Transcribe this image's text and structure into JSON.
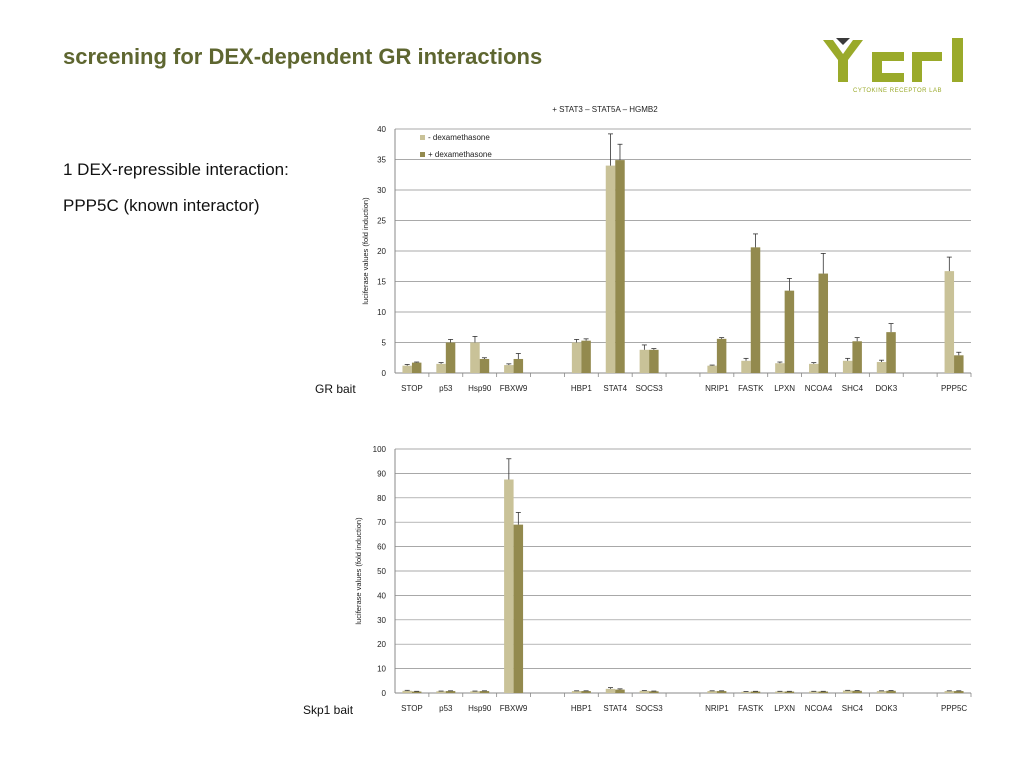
{
  "slide": {
    "title": "screening for DEX-dependent GR interactions",
    "bullet_1": "1 DEX-repressible interaction:",
    "bullet_2": "PPP5C (known interactor)",
    "bait_gr": "GR bait",
    "bait_skp1": "Skp1 bait"
  },
  "logo": {
    "letters": "ycrl",
    "subtitle": "CYTOKINE RECEPTOR LAB",
    "color": "#9aaa2a"
  },
  "colors": {
    "minus_dex": "#c9c298",
    "plus_dex": "#938a4e",
    "grid": "#8c8c8c"
  },
  "chart_data": [
    {
      "type": "bar",
      "title": "+ STAT3 – STAT5A – HGMB2",
      "ylabel": "luciferase values (fold induction)",
      "ylim": [
        0,
        40
      ],
      "yticks": [
        0,
        5,
        10,
        15,
        20,
        25,
        30,
        35,
        40
      ],
      "grid": true,
      "legend": "top-left",
      "categories": [
        "STOP",
        "p53",
        "Hsp90",
        "FBXW9",
        "",
        "HBP1",
        "STAT4",
        "SOCS3",
        "",
        "NRIP1",
        "FASTK",
        "LPXN",
        "NCOA4",
        "SHC4",
        "DOK3",
        "",
        "PPP5C"
      ],
      "series": [
        {
          "name": "- dexamethasone",
          "values": [
            1.2,
            1.5,
            5.0,
            1.3,
            null,
            5.0,
            34.0,
            3.8,
            null,
            1.2,
            2.0,
            1.6,
            1.5,
            2.0,
            1.8,
            null,
            16.7
          ],
          "errors": [
            0.2,
            0.2,
            1.0,
            0.2,
            null,
            0.5,
            5.2,
            0.8,
            null,
            0.1,
            0.4,
            0.2,
            0.2,
            0.4,
            0.3,
            null,
            2.3
          ]
        },
        {
          "name": "+ dexamethasone",
          "values": [
            1.7,
            5.0,
            2.3,
            2.3,
            null,
            5.3,
            34.9,
            3.8,
            null,
            5.6,
            20.6,
            13.5,
            16.3,
            5.2,
            6.7,
            null,
            2.9
          ],
          "errors": [
            0.1,
            0.5,
            0.2,
            0.9,
            null,
            0.3,
            2.6,
            0.2,
            null,
            0.2,
            2.2,
            2.0,
            3.3,
            0.6,
            1.4,
            null,
            0.5
          ]
        }
      ]
    },
    {
      "type": "bar",
      "ylabel": "luciferase values (fold induction)",
      "ylim": [
        0,
        100
      ],
      "yticks": [
        0,
        10,
        20,
        30,
        40,
        50,
        60,
        70,
        80,
        90,
        100
      ],
      "grid": true,
      "categories": [
        "STOP",
        "p53",
        "Hsp90",
        "FBXW9",
        "",
        "HBP1",
        "STAT4",
        "SOCS3",
        "",
        "NRIP1",
        "FASTK",
        "LPXN",
        "NCOA4",
        "SHC4",
        "DOK3",
        "",
        "PPP5C"
      ],
      "series": [
        {
          "name": "- dexamethasone",
          "values": [
            0.9,
            0.7,
            0.7,
            87.5,
            null,
            0.8,
            1.7,
            0.9,
            null,
            0.8,
            0.5,
            0.6,
            0.6,
            1.0,
            0.8,
            null,
            0.8
          ],
          "errors": [
            0.2,
            0.1,
            0.1,
            8.5,
            null,
            0.1,
            0.5,
            0.1,
            null,
            0.1,
            0.1,
            0.1,
            0.1,
            0.1,
            0.1,
            null,
            0.1
          ]
        },
        {
          "name": "+ dexamethasone",
          "values": [
            0.6,
            0.8,
            0.8,
            69.0,
            null,
            0.8,
            1.4,
            0.7,
            null,
            0.8,
            0.6,
            0.6,
            0.6,
            0.9,
            0.9,
            null,
            0.8
          ],
          "errors": [
            0.1,
            0.1,
            0.1,
            5.0,
            null,
            0.1,
            0.3,
            0.1,
            null,
            0.1,
            0.1,
            0.1,
            0.1,
            0.1,
            0.1,
            null,
            0.1
          ]
        }
      ]
    }
  ]
}
